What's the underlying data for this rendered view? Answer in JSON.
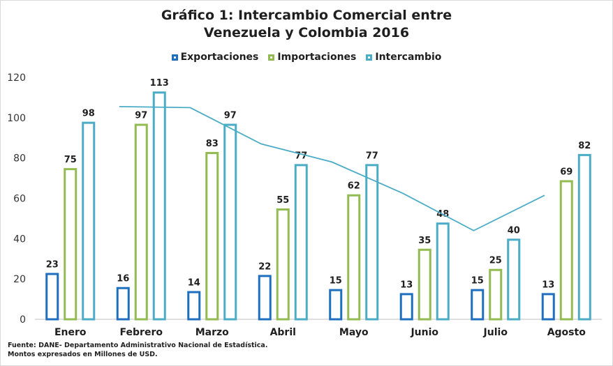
{
  "chart_data": {
    "type": "bar",
    "title_line1": "Gráfico 1: Intercambio Comercial entre",
    "title_line2": "Venezuela y Colombia 2016",
    "categories": [
      "Enero",
      "Febrero",
      "Marzo",
      "Abril",
      "Mayo",
      "Junio",
      "Julio",
      "Agosto"
    ],
    "series": [
      {
        "name": "Exportaciones",
        "color": "#1f6fbf",
        "values": [
          23,
          16,
          14,
          22,
          15,
          13,
          15,
          13
        ]
      },
      {
        "name": "Importaciones",
        "color": "#92bb52",
        "values": [
          75,
          97,
          83,
          55,
          62,
          35,
          25,
          69
        ]
      },
      {
        "name": "Intercambio",
        "color": "#4bacc6",
        "values": [
          98,
          113,
          97,
          77,
          77,
          48,
          40,
          82
        ]
      }
    ],
    "trendline": {
      "series": "Intercambio",
      "color": "#4bacc6",
      "values": [
        105.5,
        105,
        87,
        78,
        62.5,
        44,
        61.5
      ]
    },
    "ylim": [
      0,
      120
    ],
    "yticks": [
      0,
      20,
      40,
      60,
      80,
      100,
      120
    ],
    "grid": false,
    "legend_position": "top",
    "source_line1": "Fuente: DANE- Departamento Administrativo Nacional de Estadística.",
    "source_line2": "Montos expresados en Millones de USD."
  }
}
